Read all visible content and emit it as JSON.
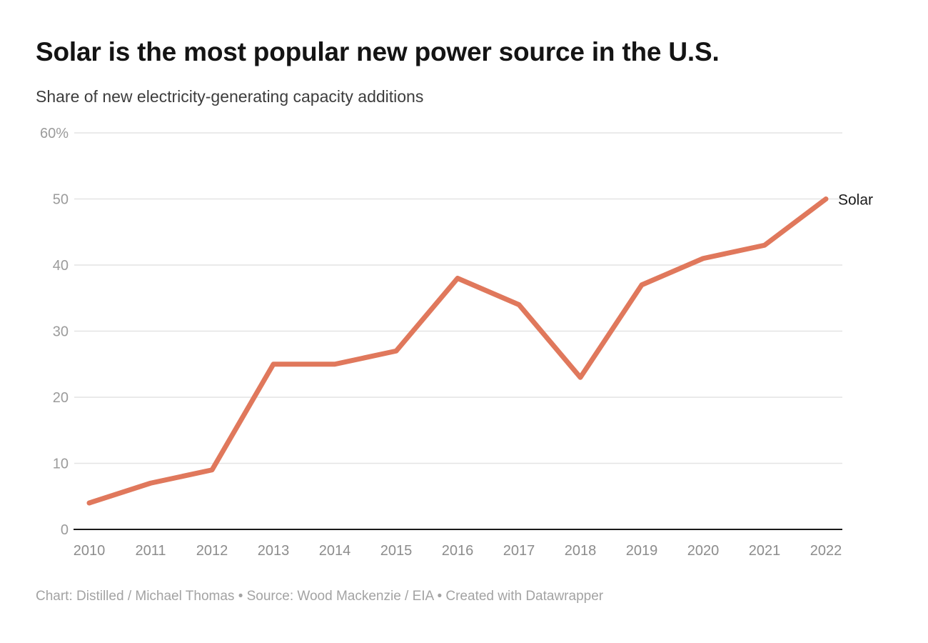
{
  "header": {
    "title": "Solar is the most popular new power source in the U.S.",
    "subtitle": "Share of new electricity-generating capacity additions"
  },
  "chart_data": {
    "type": "line",
    "title": "Solar is the most popular new power source in the U.S.",
    "subtitle": "Share of new electricity-generating capacity additions",
    "x": [
      2010,
      2011,
      2012,
      2013,
      2014,
      2015,
      2016,
      2017,
      2018,
      2019,
      2020,
      2021,
      2022
    ],
    "xtick_labels": [
      "2010",
      "2011",
      "2012",
      "2013",
      "2014",
      "2015",
      "2016",
      "2017",
      "2018",
      "2019",
      "2020",
      "2021",
      "2022"
    ],
    "series": [
      {
        "name": "Solar",
        "values": [
          4,
          7,
          9,
          25,
          25,
          27,
          38,
          34,
          23,
          37,
          41,
          43,
          50
        ]
      }
    ],
    "xlabel": "",
    "ylabel": "",
    "ylim": [
      0,
      60
    ],
    "ytick_values": [
      0,
      10,
      20,
      30,
      40,
      50,
      60
    ],
    "ytick_labels": [
      "0",
      "10",
      "20",
      "30",
      "40",
      "50",
      "60%"
    ],
    "grid": "horizontal",
    "legend_position": "end-of-line-label"
  },
  "footer": {
    "text": "Chart: Distilled / Michael Thomas • Source: Wood Mackenzie / EIA • Created with Datawrapper"
  },
  "colors": {
    "line": "#E0785C",
    "axis": "#1a1a1a",
    "grid": "#e4e4e4",
    "y_tick_text": "#9b9b9b",
    "x_tick_text": "#8c8c8c",
    "series_label_text": "#1a1a1a",
    "title_text": "#141414",
    "subtitle_text": "#3d3d3d",
    "footer_text": "#a3a3a3"
  }
}
